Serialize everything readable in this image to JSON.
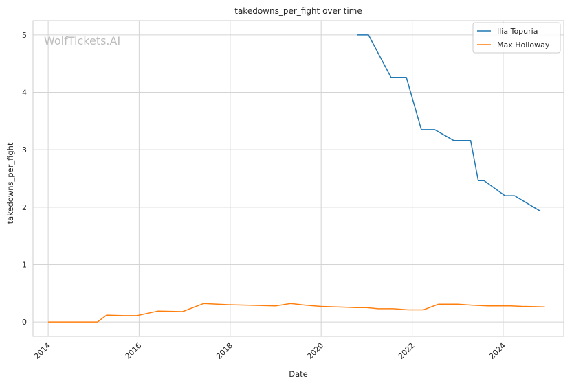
{
  "chart_data": {
    "type": "line",
    "title": "takedowns_per_fight over time",
    "xlabel": "Date",
    "ylabel": "takedowns_per_fight",
    "watermark": "WolfTickets.AI",
    "x_ticks": [
      "2014",
      "2016",
      "2018",
      "2020",
      "2022",
      "2024"
    ],
    "y_ticks": [
      "0",
      "1",
      "2",
      "3",
      "4",
      "5"
    ],
    "ylim": [
      -0.25,
      5.25
    ],
    "xlim": [
      "2013-09-01",
      "2025-05-01"
    ],
    "grid": true,
    "legend_position": "top-right",
    "series": [
      {
        "name": "Ilia Topuria",
        "color": "#1f77b4",
        "points": [
          [
            "2020-10-15",
            5.0
          ],
          [
            "2021-01-15",
            5.0
          ],
          [
            "2021-07-15",
            4.26
          ],
          [
            "2021-11-15",
            4.26
          ],
          [
            "2022-03-15",
            3.35
          ],
          [
            "2022-07-01",
            3.35
          ],
          [
            "2022-12-01",
            3.16
          ],
          [
            "2023-04-15",
            3.16
          ],
          [
            "2023-06-15",
            2.46
          ],
          [
            "2023-08-01",
            2.46
          ],
          [
            "2024-01-15",
            2.2
          ],
          [
            "2024-04-01",
            2.2
          ],
          [
            "2024-10-26",
            1.93
          ]
        ]
      },
      {
        "name": "Max Holloway",
        "color": "#ff7f0e",
        "points": [
          [
            "2014-01-01",
            0.0
          ],
          [
            "2015-02-01",
            0.0
          ],
          [
            "2015-04-15",
            0.12
          ],
          [
            "2015-09-01",
            0.11
          ],
          [
            "2015-12-15",
            0.11
          ],
          [
            "2016-06-01",
            0.19
          ],
          [
            "2016-12-15",
            0.18
          ],
          [
            "2017-06-01",
            0.32
          ],
          [
            "2017-12-15",
            0.3
          ],
          [
            "2018-06-01",
            0.29
          ],
          [
            "2019-01-01",
            0.28
          ],
          [
            "2019-05-01",
            0.32
          ],
          [
            "2019-09-01",
            0.29
          ],
          [
            "2020-01-01",
            0.27
          ],
          [
            "2020-10-01",
            0.25
          ],
          [
            "2021-01-01",
            0.25
          ],
          [
            "2021-04-01",
            0.23
          ],
          [
            "2021-08-01",
            0.23
          ],
          [
            "2021-12-01",
            0.21
          ],
          [
            "2022-04-01",
            0.21
          ],
          [
            "2022-08-01",
            0.31
          ],
          [
            "2023-01-01",
            0.31
          ],
          [
            "2023-05-01",
            0.29
          ],
          [
            "2023-09-01",
            0.28
          ],
          [
            "2024-03-01",
            0.28
          ],
          [
            "2024-06-01",
            0.27
          ],
          [
            "2024-12-01",
            0.26
          ]
        ]
      }
    ]
  }
}
